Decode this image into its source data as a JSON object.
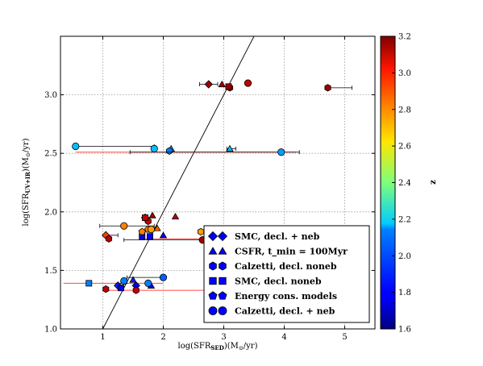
{
  "chart_data": {
    "type": "scatter",
    "title": "",
    "xlabel": "log(SFR_SED)(M⊙/yr)",
    "ylabel": "log(SFR_UV+IR)(M⊙/yr)",
    "xlim": [
      0.3,
      5.5
    ],
    "ylim": [
      1.0,
      3.5
    ],
    "x_ticks": [
      "1",
      "2",
      "3",
      "4",
      "5"
    ],
    "y_ticks": [
      "1.0",
      "1.5",
      "2.0",
      "2.5",
      "3.0"
    ],
    "grid": true,
    "one_to_one_line": true,
    "colorbar": {
      "label": "z",
      "range": [
        1.6,
        3.2
      ],
      "ticks": [
        "1.6",
        "1.8",
        "2.0",
        "2.2",
        "2.4",
        "2.6",
        "2.8",
        "3.0",
        "3.2"
      ],
      "colormap": "jet"
    },
    "legend_position": "bottom-right",
    "legend": [
      {
        "label": "SMC, decl. + neb",
        "marker": "diamond"
      },
      {
        "label": "CSFR, t_min = 100Myr",
        "marker": "triangle"
      },
      {
        "label": "Calzetti, decl. noneb",
        "marker": "hexagon"
      },
      {
        "label": "SMC, decl. noneb",
        "marker": "square"
      },
      {
        "label": "Energy cons. models",
        "marker": "pentagon"
      },
      {
        "label": "Calzetti, decl. + neb",
        "marker": "circle"
      }
    ],
    "series": [
      {
        "name": "SMC, decl. + neb",
        "marker": "diamond",
        "points": [
          {
            "x": 2.75,
            "y": 3.09,
            "z": 3.15,
            "xerr": [
              0.15,
              0.15
            ]
          },
          {
            "x": 1.7,
            "y": 1.95,
            "z": 3.05
          },
          {
            "x": 1.05,
            "y": 1.8,
            "z": 2.9,
            "xerr": [
              0.0,
              0.2
            ]
          },
          {
            "x": 1.25,
            "y": 1.37,
            "z": 1.85
          },
          {
            "x": 1.55,
            "y": 1.37,
            "z": 1.8
          }
        ]
      },
      {
        "name": "CSFR, t_min = 100Myr",
        "marker": "triangle",
        "points": [
          {
            "x": 2.97,
            "y": 3.09,
            "z": 3.15
          },
          {
            "x": 3.1,
            "y": 2.54,
            "z": 2.1,
            "xerr": [
              0.05,
              0.1
            ]
          },
          {
            "x": 2.13,
            "y": 2.54,
            "z": 2.05
          },
          {
            "x": 1.82,
            "y": 1.97,
            "z": 3.15
          },
          {
            "x": 2.2,
            "y": 1.96,
            "z": 3.1
          },
          {
            "x": 2.0,
            "y": 1.8,
            "z": 1.8
          },
          {
            "x": 1.9,
            "y": 1.86,
            "z": 2.85
          },
          {
            "x": 1.35,
            "y": 1.41,
            "z": 1.85
          },
          {
            "x": 1.5,
            "y": 1.42,
            "z": 1.85
          },
          {
            "x": 1.8,
            "y": 1.37,
            "z": 1.8
          }
        ]
      },
      {
        "name": "Calzetti, decl. noneb",
        "marker": "hexagon",
        "points": [
          {
            "x": 3.1,
            "y": 3.06,
            "z": 3.15
          },
          {
            "x": 4.72,
            "y": 3.06,
            "z": 3.15,
            "xerr": [
              0.0,
              0.4
            ]
          },
          {
            "x": 2.1,
            "y": 2.52,
            "z": 2.0
          },
          {
            "x": 1.75,
            "y": 1.92,
            "z": 3.1
          },
          {
            "x": 1.1,
            "y": 1.77,
            "z": 3.1
          },
          {
            "x": 2.62,
            "y": 1.83,
            "z": 2.75
          },
          {
            "x": 1.55,
            "y": 1.33,
            "z": 3.1
          },
          {
            "x": 1.05,
            "y": 1.34,
            "z": 3.1
          }
        ]
      },
      {
        "name": "SMC, decl. noneb",
        "marker": "square",
        "points": [
          {
            "x": 3.08,
            "y": 3.07,
            "z": 3.15
          },
          {
            "x": 1.7,
            "y": 1.95,
            "z": 3.1
          },
          {
            "x": 1.65,
            "y": 1.79,
            "z": 1.8
          },
          {
            "x": 1.78,
            "y": 1.79,
            "z": 1.8
          },
          {
            "x": 0.77,
            "y": 1.39,
            "z": 2.0
          },
          {
            "x": 1.3,
            "y": 1.35,
            "z": 1.8
          }
        ]
      },
      {
        "name": "Energy cons. models",
        "marker": "pentagon",
        "points": [
          {
            "x": 1.75,
            "y": 1.85,
            "z": 2.8
          },
          {
            "x": 1.65,
            "y": 1.83,
            "z": 2.8
          }
        ]
      },
      {
        "name": "Calzetti, decl. + neb",
        "marker": "circle",
        "points": [
          {
            "x": 3.4,
            "y": 3.1,
            "z": 3.1
          },
          {
            "x": 0.55,
            "y": 2.56,
            "z": 2.1,
            "xerr": [
              0.0,
              1.3
            ]
          },
          {
            "x": 1.85,
            "y": 2.54,
            "z": 2.1
          },
          {
            "x": 3.95,
            "y": 2.51,
            "z": 2.05,
            "xerr": [
              2.5,
              0.3
            ]
          },
          {
            "x": 1.35,
            "y": 1.88,
            "z": 2.8,
            "xerr": [
              0.4,
              0.5
            ]
          },
          {
            "x": 1.8,
            "y": 1.85,
            "z": 2.75
          },
          {
            "x": 2.65,
            "y": 1.76,
            "z": 3.15,
            "xerr": [
              1.3,
              0.0
            ]
          },
          {
            "x": 1.35,
            "y": 1.41,
            "z": 2.0
          },
          {
            "x": 2.0,
            "y": 1.44,
            "z": 1.95,
            "xerr": [
              0.6,
              0.0
            ]
          },
          {
            "x": 1.75,
            "y": 1.39,
            "z": 2.0
          }
        ]
      }
    ],
    "red_errorbars": [
      {
        "y": 2.51,
        "x0": 0.55,
        "x1": 4.2
      },
      {
        "y": 1.77,
        "x0": 1.6,
        "x1": 2.7
      },
      {
        "y": 1.39,
        "x0": 0.35,
        "x1": 2.0
      },
      {
        "y": 1.33,
        "x0": 1.1,
        "x1": 2.8
      }
    ]
  }
}
